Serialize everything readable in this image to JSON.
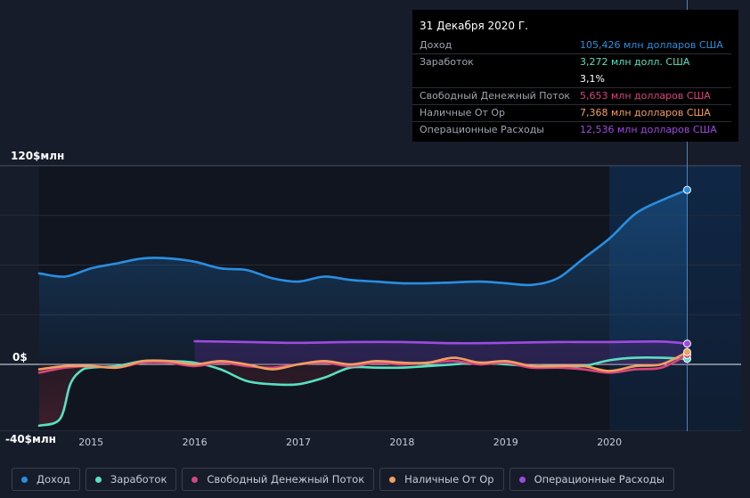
{
  "chart_data": {
    "type": "line",
    "y_tick_labels": [
      "120$млн",
      "0$",
      "-40$млн"
    ],
    "ylim": [
      -40,
      120
    ],
    "xlim": [
      2014.5,
      2021.3
    ],
    "x_tick_labels": [
      "2015",
      "2016",
      "2017",
      "2018",
      "2019",
      "2020"
    ],
    "x_ticks": [
      2015,
      2016,
      2017,
      2018,
      2019,
      2020
    ],
    "grid": true,
    "legend_position": "bottom",
    "series": [
      {
        "name": "Доход",
        "color": "#2a8ee0",
        "points": [
          [
            2014.5,
            55
          ],
          [
            2014.75,
            53
          ],
          [
            2015.0,
            58
          ],
          [
            2015.25,
            61
          ],
          [
            2015.5,
            64
          ],
          [
            2015.75,
            64
          ],
          [
            2016.0,
            62
          ],
          [
            2016.25,
            58
          ],
          [
            2016.5,
            57
          ],
          [
            2016.75,
            52
          ],
          [
            2017.0,
            50
          ],
          [
            2017.25,
            53
          ],
          [
            2017.5,
            51
          ],
          [
            2017.75,
            50
          ],
          [
            2018.0,
            49
          ],
          [
            2018.25,
            49
          ],
          [
            2018.5,
            49.5
          ],
          [
            2018.75,
            50
          ],
          [
            2019.0,
            49
          ],
          [
            2019.25,
            48
          ],
          [
            2019.5,
            52
          ],
          [
            2019.75,
            64
          ],
          [
            2020.0,
            76
          ],
          [
            2020.25,
            91
          ],
          [
            2020.5,
            99
          ],
          [
            2020.75,
            105.4
          ]
        ]
      },
      {
        "name": "Заработок",
        "color": "#58e0c0",
        "points": [
          [
            2014.5,
            -37
          ],
          [
            2014.7,
            -33
          ],
          [
            2014.8,
            -12
          ],
          [
            2014.9,
            -4
          ],
          [
            2015.0,
            -2
          ],
          [
            2015.25,
            -1
          ],
          [
            2015.5,
            2
          ],
          [
            2015.75,
            2
          ],
          [
            2016.0,
            1
          ],
          [
            2016.25,
            -3
          ],
          [
            2016.5,
            -10
          ],
          [
            2016.75,
            -12
          ],
          [
            2017.0,
            -12
          ],
          [
            2017.25,
            -8
          ],
          [
            2017.5,
            -2
          ],
          [
            2017.75,
            -2
          ],
          [
            2018.0,
            -2
          ],
          [
            2018.25,
            -1
          ],
          [
            2018.5,
            0
          ],
          [
            2018.75,
            1
          ],
          [
            2019.0,
            0
          ],
          [
            2019.25,
            -1
          ],
          [
            2019.5,
            -1
          ],
          [
            2019.75,
            -1
          ],
          [
            2020.0,
            2.5
          ],
          [
            2020.25,
            4
          ],
          [
            2020.5,
            4
          ],
          [
            2020.75,
            3.3
          ]
        ]
      },
      {
        "name": "Свободный Денежный Поток",
        "color": "#d4467e",
        "points": [
          [
            2014.5,
            -5
          ],
          [
            2014.75,
            -2
          ],
          [
            2015.0,
            -1
          ],
          [
            2015.25,
            -2
          ],
          [
            2015.5,
            1
          ],
          [
            2015.75,
            1
          ],
          [
            2016.0,
            -1
          ],
          [
            2016.25,
            1
          ],
          [
            2016.5,
            -1
          ],
          [
            2016.75,
            -2
          ],
          [
            2017.0,
            0
          ],
          [
            2017.25,
            1
          ],
          [
            2017.5,
            -1
          ],
          [
            2017.75,
            1
          ],
          [
            2018.0,
            0
          ],
          [
            2018.25,
            1
          ],
          [
            2018.5,
            2
          ],
          [
            2018.75,
            0
          ],
          [
            2019.0,
            1
          ],
          [
            2019.25,
            -2
          ],
          [
            2019.5,
            -2
          ],
          [
            2019.75,
            -3
          ],
          [
            2020.0,
            -5
          ],
          [
            2020.25,
            -3
          ],
          [
            2020.5,
            -2
          ],
          [
            2020.75,
            5.7
          ]
        ]
      },
      {
        "name": "Наличные От Ор",
        "color": "#f0a060",
        "points": [
          [
            2014.5,
            -3
          ],
          [
            2014.75,
            -1
          ],
          [
            2015.0,
            -1
          ],
          [
            2015.25,
            -2
          ],
          [
            2015.5,
            2
          ],
          [
            2015.75,
            2
          ],
          [
            2016.0,
            0
          ],
          [
            2016.25,
            2
          ],
          [
            2016.5,
            0
          ],
          [
            2016.75,
            -3
          ],
          [
            2017.0,
            0
          ],
          [
            2017.25,
            2
          ],
          [
            2017.5,
            0
          ],
          [
            2017.75,
            2
          ],
          [
            2018.0,
            1
          ],
          [
            2018.25,
            1
          ],
          [
            2018.5,
            4
          ],
          [
            2018.75,
            1
          ],
          [
            2019.0,
            2
          ],
          [
            2019.25,
            -1
          ],
          [
            2019.5,
            -1
          ],
          [
            2019.75,
            -1
          ],
          [
            2020.0,
            -4
          ],
          [
            2020.25,
            -1
          ],
          [
            2020.5,
            0
          ],
          [
            2020.75,
            7.4
          ]
        ]
      },
      {
        "name": "Операционные Расходы",
        "color": "#a04ae0",
        "points": [
          [
            2016.0,
            14
          ],
          [
            2016.5,
            13.5
          ],
          [
            2017.0,
            13
          ],
          [
            2017.5,
            13.5
          ],
          [
            2018.0,
            13.5
          ],
          [
            2018.5,
            12.8
          ],
          [
            2019.0,
            13
          ],
          [
            2019.5,
            13.5
          ],
          [
            2020.0,
            13.5
          ],
          [
            2020.5,
            13.8
          ],
          [
            2020.75,
            12.5
          ]
        ]
      }
    ]
  },
  "tooltip": {
    "date": "31 Декабря 2020 Г.",
    "rows": [
      {
        "label": "Доход",
        "value": "105,426 млн долларов США",
        "color": "#2a8ee0"
      },
      {
        "label": "Заработок",
        "value": "3,272 млн долл. США",
        "color": "#58e0c0"
      },
      {
        "label": "",
        "value": "3,1%",
        "color": "#ffffff"
      },
      {
        "label": "Свободный Денежный Поток",
        "value": "5,653 млн долларов США",
        "color": "#d4467e"
      },
      {
        "label": "Наличные От Ор",
        "value": "7,368 млн долларов США",
        "color": "#f0a060"
      },
      {
        "label": "Операционные Расходы",
        "value": "12,536 млн долларов США",
        "color": "#a04ae0"
      }
    ]
  },
  "highlight_period_start": 2020.0,
  "cursor_x": 2020.75,
  "colors": {
    "background": "#161c2a",
    "plot_background": "#101520",
    "grid": "#262c39",
    "highlight": "#12325a"
  }
}
